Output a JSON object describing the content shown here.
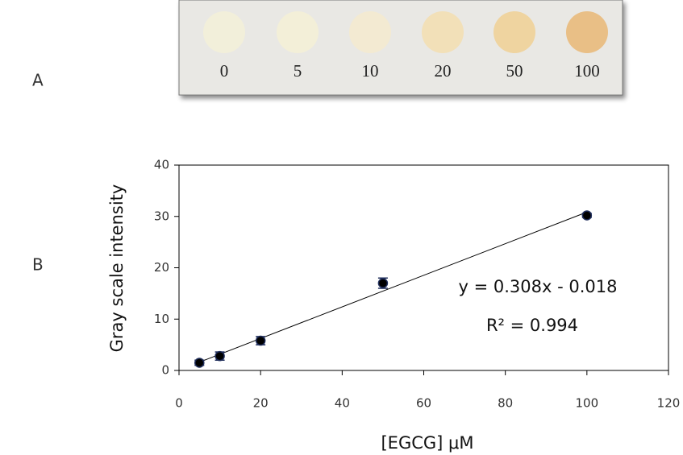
{
  "panel_labels": [
    "A",
    "B"
  ],
  "strip": {
    "labels": [
      "0",
      "5",
      "10",
      "20",
      "50",
      "100"
    ]
  },
  "chart_data": {
    "type": "scatter",
    "x": [
      5,
      10,
      20,
      50,
      100
    ],
    "values": [
      1.5,
      2.8,
      5.8,
      17.0,
      30.2
    ],
    "errors": [
      0.5,
      0.8,
      0.8,
      1.0,
      0.4
    ],
    "color": "#000000",
    "x_label": "[EGCG] μM",
    "y_label": "Gray scale intensity",
    "annotations": [
      "y = 0.308x - 0.018",
      "R² = 0.994"
    ],
    "trendline": true,
    "xlim": [
      0,
      120
    ],
    "xticks": [
      0,
      20,
      40,
      60,
      80,
      100,
      120
    ],
    "ylim": [
      0,
      40
    ],
    "yticks": [
      0,
      10,
      20,
      30,
      40
    ]
  }
}
